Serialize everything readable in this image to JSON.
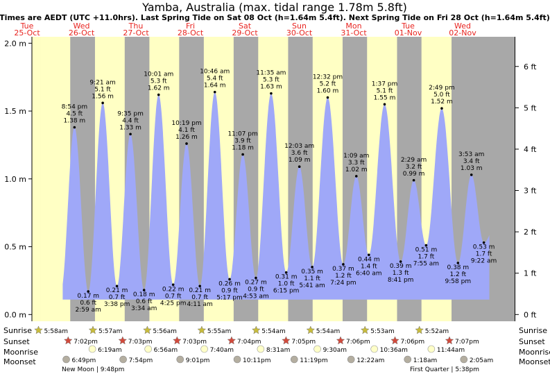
{
  "title": "Yamba, Australia (max. tidal range 1.78m 5.8ft)",
  "subtitle": "Times are AEDT (UTC +11.0hrs). Last Spring Tide on Sat 08 Oct (h=1.64m 5.4ft). Next Spring Tide on Fri 28 Oct (h=1.64m 5.4ft)",
  "colors": {
    "day": "#ffffc4",
    "night": "#a8a8a8",
    "water": "#9fa8f8",
    "day_label": "#e8231f",
    "sun": "#c8bc3c",
    "sunset": "#d24a3c",
    "moonrise": "#ffffc8",
    "moonset": "#b4aea0"
  },
  "row_labels": {
    "sunrise": "Sunrise",
    "sunset": "Sunset",
    "moonrise": "Moonrise",
    "moonset": "Moonset"
  },
  "chart_data": {
    "type": "area",
    "title": "Yamba, Australia (max. tidal range 1.78m 5.8ft)",
    "xlabel": "",
    "ylabel": "",
    "x_unit": "days from 25-Oct 00:00",
    "xlim": [
      -0.15,
      8.7
    ],
    "ylim": [
      -0.07,
      2.08
    ],
    "y_ticks_m": [
      "0.0 m",
      "0.5 m",
      "1.0 m",
      "1.5 m",
      "2.0 m"
    ],
    "y_ticks_ft": [
      "0 ft",
      "1 ft",
      "2 ft",
      "3 ft",
      "4 ft",
      "5 ft",
      "6 ft"
    ],
    "grid": false,
    "days": [
      {
        "dow": "Tue",
        "date": "25-Oct"
      },
      {
        "dow": "Wed",
        "date": "26-Oct"
      },
      {
        "dow": "Thu",
        "date": "27-Oct"
      },
      {
        "dow": "Fri",
        "date": "28-Oct"
      },
      {
        "dow": "Sat",
        "date": "29-Oct"
      },
      {
        "dow": "Sun",
        "date": "30-Oct"
      },
      {
        "dow": "Mon",
        "date": "31-Oct"
      },
      {
        "dow": "Tue",
        "date": "01-Nov"
      },
      {
        "dow": "Wed",
        "date": "02-Nov"
      }
    ],
    "tides": [
      {
        "type": "high",
        "time": "8:54 pm",
        "t": 0.871,
        "ft": "4.5 ft",
        "m": "1.38 m",
        "h": 1.38
      },
      {
        "type": "low",
        "time": "2:59 am",
        "t": 1.124,
        "ft": "0.6 ft",
        "m": "0.17 m",
        "h": 0.17
      },
      {
        "type": "high",
        "time": "9:21 am",
        "t": 1.39,
        "ft": "5.1 ft",
        "m": "1.56 m",
        "h": 1.56
      },
      {
        "type": "low",
        "time": "3:38 pm",
        "t": 1.651,
        "ft": "0.7 ft",
        "m": "0.21 m",
        "h": 0.21
      },
      {
        "type": "high",
        "time": "9:35 pm",
        "t": 1.899,
        "ft": "4.4 ft",
        "m": "1.33 m",
        "h": 1.33
      },
      {
        "type": "low",
        "time": "3:34 am",
        "t": 2.149,
        "ft": "0.6 ft",
        "m": "0.18 m",
        "h": 0.18
      },
      {
        "type": "high",
        "time": "10:01 am",
        "t": 2.417,
        "ft": "5.3 ft",
        "m": "1.62 m",
        "h": 1.62
      },
      {
        "type": "low",
        "time": "4:25 pm",
        "t": 2.684,
        "ft": "0.7 ft",
        "m": "0.22 m",
        "h": 0.22
      },
      {
        "type": "high",
        "time": "10:19 pm",
        "t": 2.93,
        "ft": "4.1 ft",
        "m": "1.26 m",
        "h": 1.26
      },
      {
        "type": "low",
        "time": "4:11 am",
        "t": 3.174,
        "ft": "0.7 ft",
        "m": "0.21 m",
        "h": 0.21
      },
      {
        "type": "high",
        "time": "10:46 am",
        "t": 3.449,
        "ft": "5.4 ft",
        "m": "1.64 m",
        "h": 1.64
      },
      {
        "type": "low",
        "time": "5:17 pm",
        "t": 3.72,
        "ft": "0.9 ft",
        "m": "0.26 m",
        "h": 0.26
      },
      {
        "type": "high",
        "time": "11:07 pm",
        "t": 3.963,
        "ft": "3.9 ft",
        "m": "1.18 m",
        "h": 1.18
      },
      {
        "type": "low",
        "time": "4:53 am",
        "t": 4.203,
        "ft": "0.9 ft",
        "m": "0.27 m",
        "h": 0.27
      },
      {
        "type": "high",
        "time": "11:35 am",
        "t": 4.483,
        "ft": "5.3 ft",
        "m": "1.63 m",
        "h": 1.63
      },
      {
        "type": "low",
        "time": "6:15 pm",
        "t": 4.76,
        "ft": "1.0 ft",
        "m": "0.31 m",
        "h": 0.31
      },
      {
        "type": "high",
        "time": "12:03 am",
        "t": 5.002,
        "ft": "3.6 ft",
        "m": "1.09 m",
        "h": 1.09
      },
      {
        "type": "low",
        "time": "5:41 am",
        "t": 5.237,
        "ft": "1.1 ft",
        "m": "0.35 m",
        "h": 0.35
      },
      {
        "type": "high",
        "time": "12:32 pm",
        "t": 5.522,
        "ft": "5.2 ft",
        "m": "1.60 m",
        "h": 1.6
      },
      {
        "type": "low",
        "time": "7:24 pm",
        "t": 5.808,
        "ft": "1.2 ft",
        "m": "0.37 m",
        "h": 0.37
      },
      {
        "type": "high",
        "time": "1:09 am",
        "t": 6.048,
        "ft": "3.3 ft",
        "m": "1.02 m",
        "h": 1.02
      },
      {
        "type": "low",
        "time": "6:40 am",
        "t": 6.278,
        "ft": "1.4 ft",
        "m": "0.44 m",
        "h": 0.44
      },
      {
        "type": "high",
        "time": "1:37 pm",
        "t": 6.567,
        "ft": "5.1 ft",
        "m": "1.55 m",
        "h": 1.55
      },
      {
        "type": "low",
        "time": "8:41 pm",
        "t": 6.862,
        "ft": "1.3 ft",
        "m": "0.39 m",
        "h": 0.39
      },
      {
        "type": "high",
        "time": "2:29 am",
        "t": 7.103,
        "ft": "3.2 ft",
        "m": "0.99 m",
        "h": 0.99
      },
      {
        "type": "low",
        "time": "7:55 am",
        "t": 7.33,
        "ft": "1.7 ft",
        "m": "0.51 m",
        "h": 0.51
      },
      {
        "type": "high",
        "time": "2:49 pm",
        "t": 7.617,
        "ft": "5.0 ft",
        "m": "1.52 m",
        "h": 1.52
      },
      {
        "type": "low",
        "time": "9:58 pm",
        "t": 7.915,
        "ft": "1.2 ft",
        "m": "0.38 m",
        "h": 0.38
      },
      {
        "type": "high",
        "time": "3:53 am",
        "t": 8.162,
        "ft": "3.4 ft",
        "m": "1.03 m",
        "h": 1.03
      },
      {
        "type": "low",
        "time": "9:22 am",
        "t": 8.39,
        "ft": "1.7 ft",
        "m": "0.53 m",
        "h": 0.53
      }
    ],
    "sun": [
      {
        "day": 0,
        "sunrise": "5:58am",
        "sunset": "7:02pm"
      },
      {
        "day": 1,
        "sunrise": "5:57am",
        "sunset": "7:03pm"
      },
      {
        "day": 2,
        "sunrise": "5:56am",
        "sunset": "7:03pm"
      },
      {
        "day": 3,
        "sunrise": "5:55am",
        "sunset": "7:04pm"
      },
      {
        "day": 4,
        "sunrise": "5:54am",
        "sunset": "7:05pm"
      },
      {
        "day": 5,
        "sunrise": "5:54am",
        "sunset": "7:06pm"
      },
      {
        "day": 6,
        "sunrise": "5:53am",
        "sunset": "7:06pm"
      },
      {
        "day": 7,
        "sunrise": "5:52am",
        "sunset": "7:07pm"
      }
    ],
    "moonrise": [
      "6:19am",
      "6:56am",
      "7:40am",
      "8:31am",
      "9:30am",
      "10:36am",
      "11:44am"
    ],
    "moonset": [
      "6:49pm",
      "7:54pm",
      "9:01pm",
      "10:11pm",
      "11:19pm",
      "12:22am",
      "1:18am",
      "2:05am"
    ],
    "moon_phases": [
      {
        "label": "New Moon",
        "time": "9:48pm"
      },
      {
        "label": "First Quarter",
        "time": "5:38pm"
      }
    ]
  }
}
